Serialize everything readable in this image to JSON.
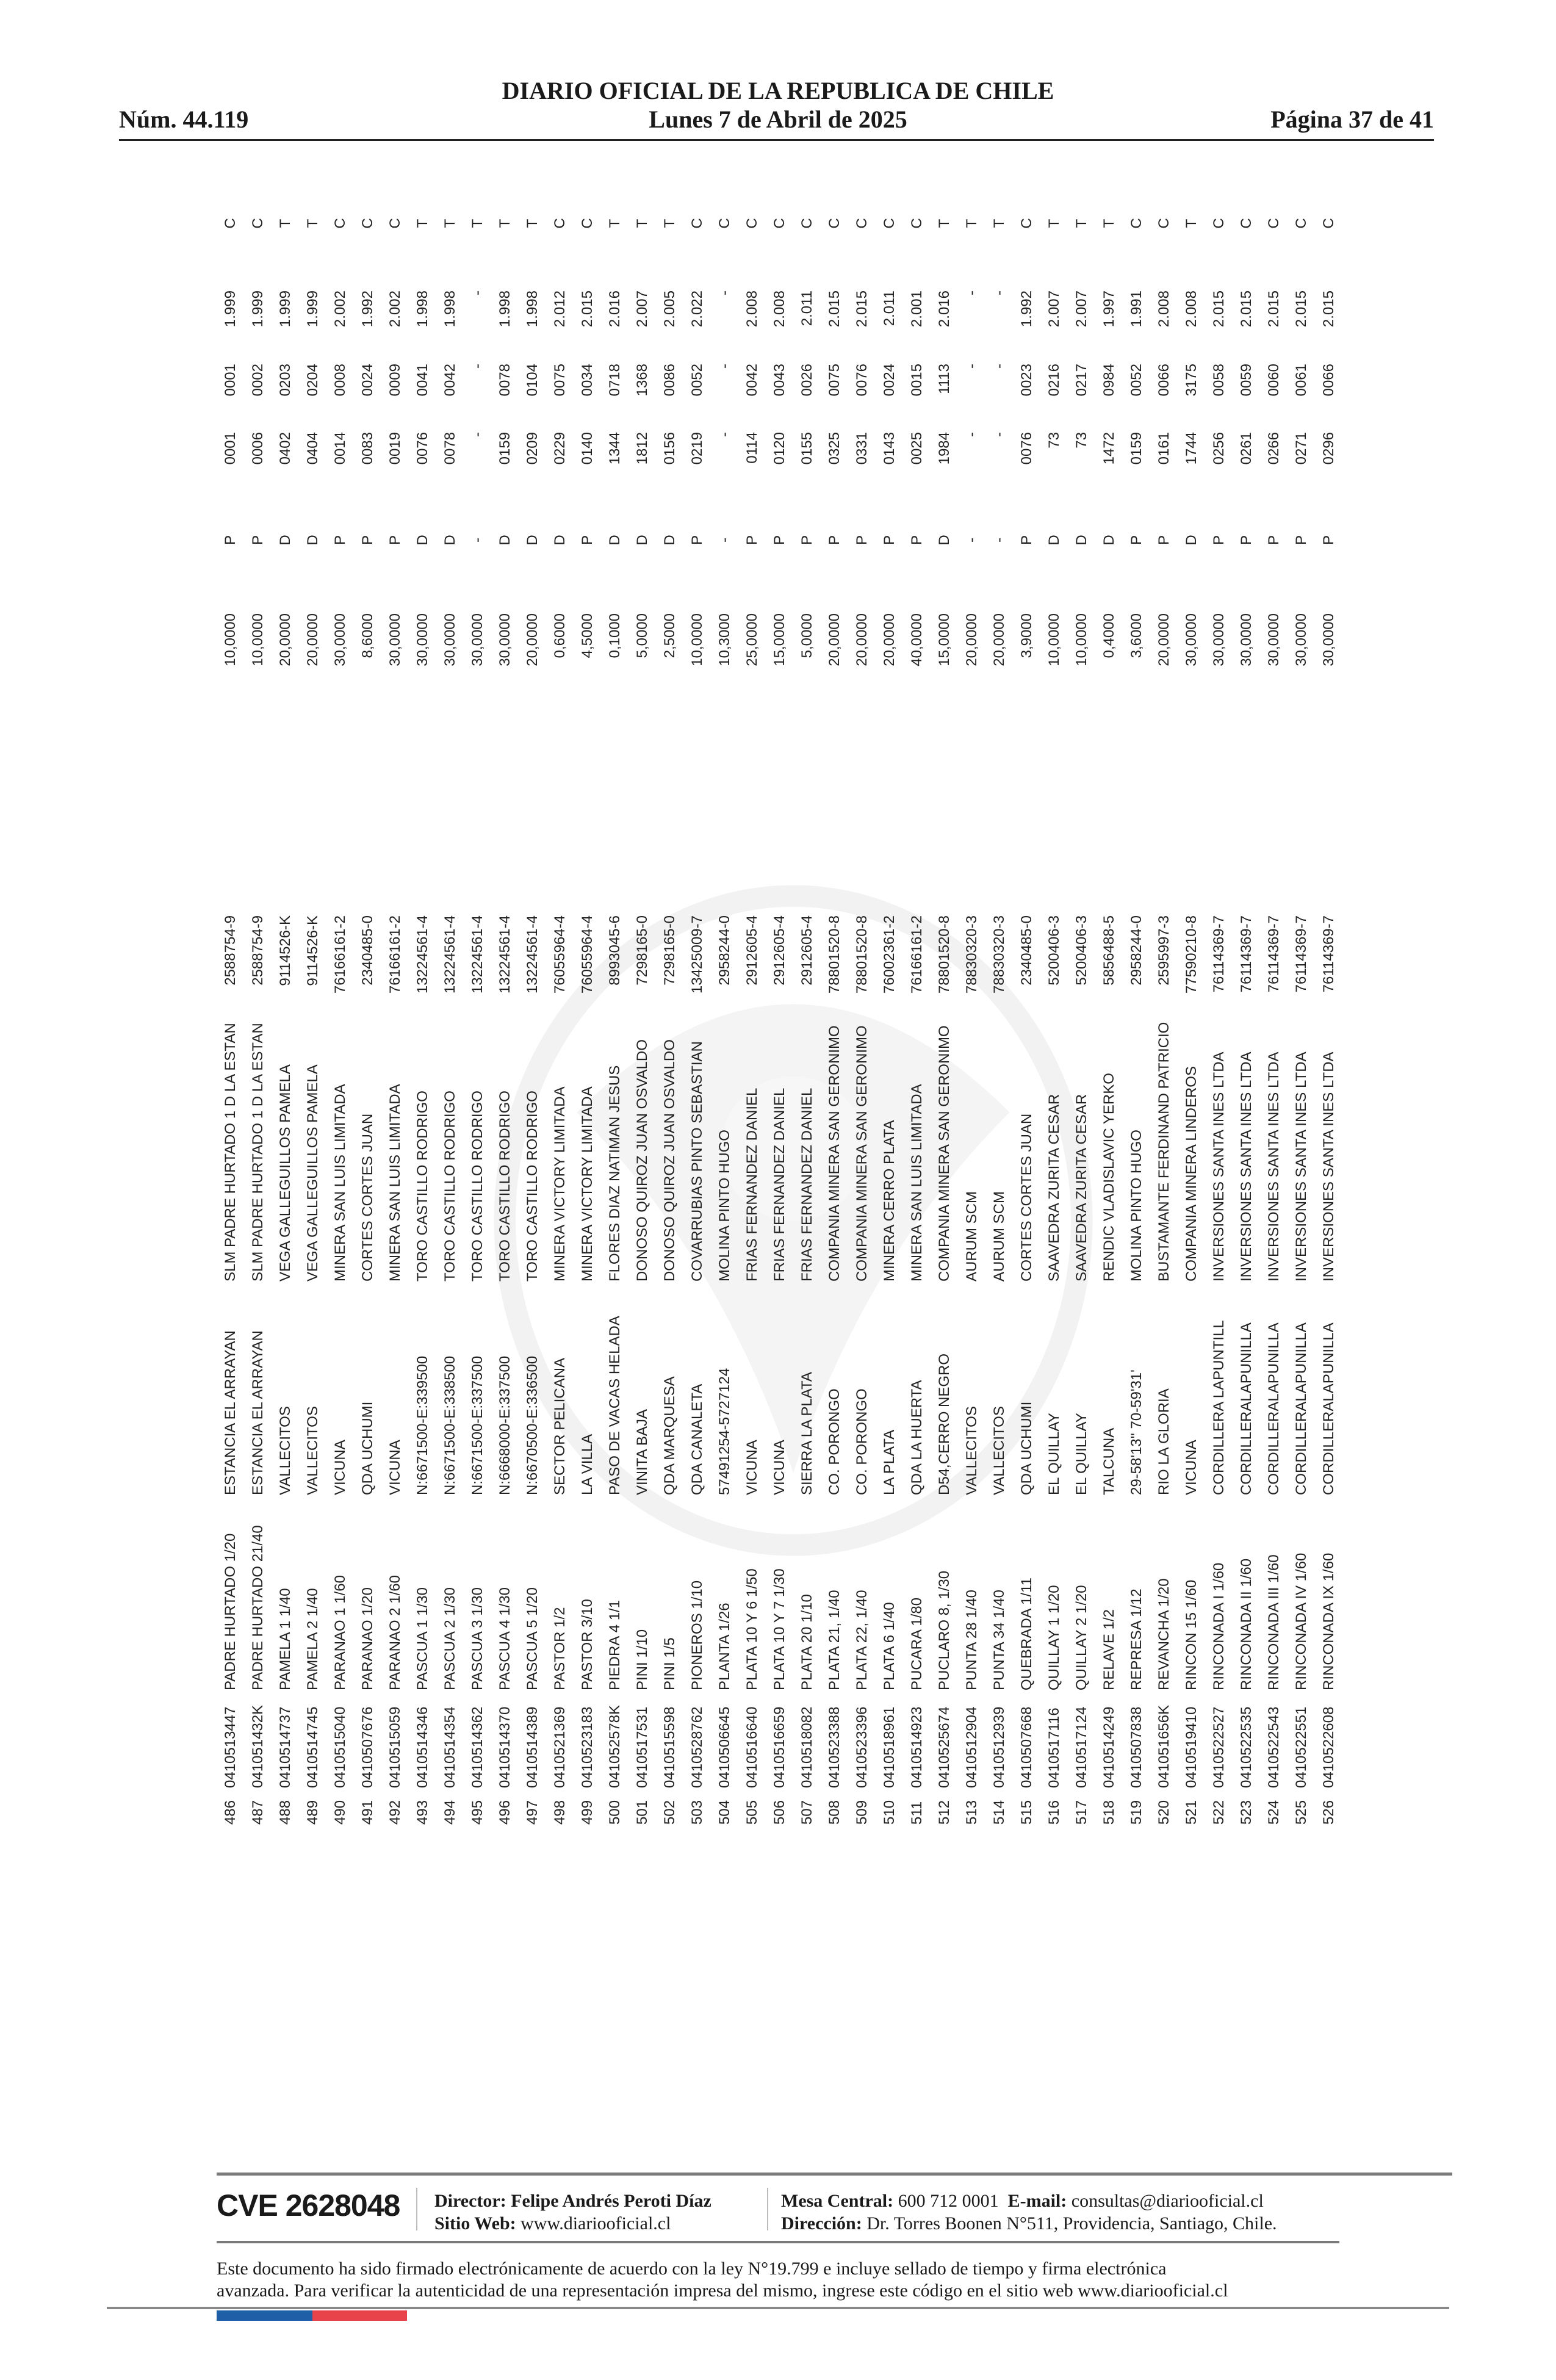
{
  "header": {
    "title": "DIARIO OFICIAL DE LA REPUBLICA DE CHILE",
    "issue": "Núm. 44.119",
    "date": "Lunes 7 de Abril de 2025",
    "page": "Página 37 de 41"
  },
  "rows": [
    [
      "486",
      "0410513447",
      "PADRE HURTADO 1/20",
      "ESTANCIA EL ARRAYAN",
      "SLM PADRE HURTADO 1 D LA ESTAN",
      "2588754-9",
      "10,0000",
      "P",
      "0001",
      "0001",
      "1.999",
      "C"
    ],
    [
      "487",
      "041051432K",
      "PADRE HURTADO 21/40",
      "ESTANCIA EL ARRAYAN",
      "SLM PADRE HURTADO 1 D LA ESTAN",
      "2588754-9",
      "10,0000",
      "P",
      "0006",
      "0002",
      "1.999",
      "C"
    ],
    [
      "488",
      "0410514737",
      "PAMELA 1 1/40",
      "VALLECITOS",
      "VEGA GALLEGUILLOS PAMELA",
      "9114526-K",
      "20,0000",
      "D",
      "0402",
      "0203",
      "1.999",
      "T"
    ],
    [
      "489",
      "0410514745",
      "PAMELA 2 1/40",
      "VALLECITOS",
      "VEGA GALLEGUILLOS PAMELA",
      "9114526-K",
      "20,0000",
      "D",
      "0404",
      "0204",
      "1.999",
      "T"
    ],
    [
      "490",
      "0410515040",
      "PARANAO 1 1/60",
      "VICUNA",
      "MINERA SAN LUIS LIMITADA",
      "76166161-2",
      "30,0000",
      "P",
      "0014",
      "0008",
      "2.002",
      "C"
    ],
    [
      "491",
      "0410507676",
      "PARANAO 1/20",
      "QDA UCHUMI",
      "CORTES CORTES JUAN",
      "2340485-0",
      "8,6000",
      "P",
      "0083",
      "0024",
      "1.992",
      "C"
    ],
    [
      "492",
      "0410515059",
      "PARANAO 2 1/60",
      "VICUNA",
      "MINERA SAN LUIS LIMITADA",
      "76166161-2",
      "30,0000",
      "P",
      "0019",
      "0009",
      "2.002",
      "C"
    ],
    [
      "493",
      "0410514346",
      "PASCUA 1 1/30",
      "N:6671500-E:339500",
      "TORO CASTILLO RODRIGO",
      "13224561-4",
      "30,0000",
      "D",
      "0076",
      "0041",
      "1.998",
      "T"
    ],
    [
      "494",
      "0410514354",
      "PASCUA 2 1/30",
      "N:6671500-E:338500",
      "TORO CASTILLO RODRIGO",
      "13224561-4",
      "30,0000",
      "D",
      "0078",
      "0042",
      "1.998",
      "T"
    ],
    [
      "495",
      "0410514362",
      "PASCUA 3 1/30",
      "N:6671500-E:337500",
      "TORO CASTILLO RODRIGO",
      "13224561-4",
      "30,0000",
      "-",
      "-",
      "-",
      "-",
      "T"
    ],
    [
      "496",
      "0410514370",
      "PASCUA 4 1/30",
      "N:6668000-E:337500",
      "TORO CASTILLO RODRIGO",
      "13224561-4",
      "30,0000",
      "D",
      "0159",
      "0078",
      "1.998",
      "T"
    ],
    [
      "497",
      "0410514389",
      "PASCUA 5 1/20",
      "N:6670500-E:336500",
      "TORO CASTILLO RODRIGO",
      "13224561-4",
      "20,0000",
      "D",
      "0209",
      "0104",
      "1.998",
      "T"
    ],
    [
      "498",
      "0410521369",
      "PASTOR 1/2",
      "SECTOR PELICANA",
      "MINERA VICTORY LIMITADA",
      "76055964-4",
      "0,6000",
      "D",
      "0229",
      "0075",
      "2.012",
      "C"
    ],
    [
      "499",
      "0410523183",
      "PASTOR 3/10",
      "LA VILLA",
      "MINERA VICTORY LIMITADA",
      "76055964-4",
      "4,5000",
      "P",
      "0140",
      "0034",
      "2.015",
      "C"
    ],
    [
      "500",
      "041052578K",
      "PIEDRA 4 1/1",
      "PASO DE VACAS HELADA",
      "FLORES DIAZ NATIMAN JESUS",
      "8993045-6",
      "0,1000",
      "D",
      "1344",
      "0718",
      "2.016",
      "T"
    ],
    [
      "501",
      "0410517531",
      "PINI 1/10",
      "VINITA BAJA",
      "DONOSO QUIROZ JUAN OSVALDO",
      "7298165-0",
      "5,0000",
      "D",
      "1812",
      "1368",
      "2.007",
      "T"
    ],
    [
      "502",
      "0410515598",
      "PINI 1/5",
      "QDA MARQUESA",
      "DONOSO QUIROZ JUAN OSVALDO",
      "7298165-0",
      "2,5000",
      "D",
      "0156",
      "0086",
      "2.005",
      "T"
    ],
    [
      "503",
      "0410528762",
      "PIONEROS 1/10",
      "QDA CANALETA",
      "COVARRUBIAS PINTO SEBASTIAN",
      "13425009-7",
      "10,0000",
      "P",
      "0219",
      "0052",
      "2.022",
      "C"
    ],
    [
      "504",
      "0410506645",
      "PLANTA 1/26",
      "57491254-5727124",
      "MOLINA PINTO HUGO",
      "2958244-0",
      "10,3000",
      "-",
      "-",
      "-",
      "-",
      "C"
    ],
    [
      "505",
      "0410516640",
      "PLATA 10 Y 6 1/50",
      "VICUNA",
      "FRIAS FERNANDEZ DANIEL",
      "2912605-4",
      "25,0000",
      "P",
      "0114",
      "0042",
      "2.008",
      "C"
    ],
    [
      "506",
      "0410516659",
      "PLATA 10 Y 7 1/30",
      "VICUNA",
      "FRIAS FERNANDEZ DANIEL",
      "2912605-4",
      "15,0000",
      "P",
      "0120",
      "0043",
      "2.008",
      "C"
    ],
    [
      "507",
      "0410518082",
      "PLATA 20 1/10",
      "SIERRA LA PLATA",
      "FRIAS FERNANDEZ DANIEL",
      "2912605-4",
      "5,0000",
      "P",
      "0155",
      "0026",
      "2.011",
      "C"
    ],
    [
      "508",
      "0410523388",
      "PLATA 21, 1/40",
      "CO. PORONGO",
      "COMPANIA MINERA SAN GERONIMO",
      "78801520-8",
      "20,0000",
      "P",
      "0325",
      "0075",
      "2.015",
      "C"
    ],
    [
      "509",
      "0410523396",
      "PLATA 22, 1/40",
      "CO. PORONGO",
      "COMPANIA MINERA SAN GERONIMO",
      "78801520-8",
      "20,0000",
      "P",
      "0331",
      "0076",
      "2.015",
      "C"
    ],
    [
      "510",
      "0410518961",
      "PLATA 6 1/40",
      "LA PLATA",
      "MINERA CERRO PLATA",
      "76002361-2",
      "20,0000",
      "P",
      "0143",
      "0024",
      "2.011",
      "C"
    ],
    [
      "511",
      "0410514923",
      "PUCARA 1/80",
      "QDA LA HUERTA",
      "MINERA SAN LUIS LIMITADA",
      "76166161-2",
      "40,0000",
      "P",
      "0025",
      "0015",
      "2.001",
      "C"
    ],
    [
      "512",
      "0410525674",
      "PUCLARO 8, 1/30",
      "D54,CERRO NEGRO",
      "COMPANIA MINERA SAN GERONIMO",
      "78801520-8",
      "15,0000",
      "D",
      "1984",
      "1113",
      "2.016",
      "T"
    ],
    [
      "513",
      "0410512904",
      "PUNTA 28 1/40",
      "VALLECITOS",
      "AURUM SCM",
      "78830320-3",
      "20,0000",
      "-",
      "-",
      "-",
      "-",
      "T"
    ],
    [
      "514",
      "0410512939",
      "PUNTA 34 1/40",
      "VALLECITOS",
      "AURUM SCM",
      "78830320-3",
      "20,0000",
      "-",
      "-",
      "-",
      "-",
      "T"
    ],
    [
      "515",
      "0410507668",
      "QUEBRADA 1/11",
      "QDA UCHUMI",
      "CORTES CORTES JUAN",
      "2340485-0",
      "3,9000",
      "P",
      "0076",
      "0023",
      "1.992",
      "C"
    ],
    [
      "516",
      "0410517116",
      "QUILLAY 1 1/20",
      "EL QUILLAY",
      "SAAVEDRA ZURITA CESAR",
      "5200406-3",
      "10,0000",
      "D",
      "73",
      "0216",
      "2.007",
      "T"
    ],
    [
      "517",
      "0410517124",
      "QUILLAY 2 1/20",
      "EL QUILLAY",
      "SAAVEDRA ZURITA CESAR",
      "5200406-3",
      "10,0000",
      "D",
      "73",
      "0217",
      "2.007",
      "T"
    ],
    [
      "518",
      "0410514249",
      "RELAVE 1/2",
      "TALCUNA",
      "RENDIC VLADISLAVIC YERKO",
      "5856488-5",
      "0,4000",
      "D",
      "1472",
      "0984",
      "1.997",
      "T"
    ],
    [
      "519",
      "0410507838",
      "REPRESA 1/12",
      "29-58'13'' 70-59'31'",
      "MOLINA PINTO HUGO",
      "2958244-0",
      "3,6000",
      "P",
      "0159",
      "0052",
      "1.991",
      "C"
    ],
    [
      "520",
      "041051656K",
      "REVANCHA 1/20",
      "RIO LA GLORIA",
      "BUSTAMANTE FERDINAND PATRICIO",
      "2595997-3",
      "20,0000",
      "P",
      "0161",
      "0066",
      "2.008",
      "C"
    ],
    [
      "521",
      "0410519410",
      "RINCON 15 1/60",
      "VICUNA",
      "COMPANIA MINERA LINDEROS",
      "77590210-8",
      "30,0000",
      "D",
      "1744",
      "3175",
      "2.008",
      "T"
    ],
    [
      "522",
      "0410522527",
      "RINCONADA I 1/60",
      "CORDILLERA LAPUNTILL",
      "INVERSIONES SANTA INES LTDA",
      "76114369-7",
      "30,0000",
      "P",
      "0256",
      "0058",
      "2.015",
      "C"
    ],
    [
      "523",
      "0410522535",
      "RINCONADA II 1/60",
      "CORDILLERALAPUNILLA",
      "INVERSIONES SANTA INES LTDA",
      "76114369-7",
      "30,0000",
      "P",
      "0261",
      "0059",
      "2.015",
      "C"
    ],
    [
      "524",
      "0410522543",
      "RINCONADA III 1/60",
      "CORDILLERALAPUNILLA",
      "INVERSIONES SANTA INES LTDA",
      "76114369-7",
      "30,0000",
      "P",
      "0266",
      "0060",
      "2.015",
      "C"
    ],
    [
      "525",
      "0410522551",
      "RINCONADA IV 1/60",
      "CORDILLERALAPUNILLA",
      "INVERSIONES SANTA INES LTDA",
      "76114369-7",
      "30,0000",
      "P",
      "0271",
      "0061",
      "2.015",
      "C"
    ],
    [
      "526",
      "0410522608",
      "RINCONADA IX 1/60",
      "CORDILLERALAPUNILLA",
      "INVERSIONES SANTA INES LTDA",
      "76114369-7",
      "30,0000",
      "P",
      "0296",
      "0066",
      "2.015",
      "C"
    ]
  ],
  "footer": {
    "cve": "CVE 2628048",
    "director_label": "Director:",
    "director": "Felipe Andrés Peroti Díaz",
    "web_label": "Sitio Web:",
    "web": "www.diariooficial.cl",
    "phone_label": "Mesa Central:",
    "phone": "600 712 0001",
    "email_label": "E-mail:",
    "email": "consultas@diariooficial.cl",
    "address_label": "Dirección:",
    "address": "Dr. Torres Boonen N°511, Providencia, Santiago, Chile.",
    "disclaimer_1": "Este documento ha sido firmado electrónicamente de acuerdo con la ley N°19.799 e incluye sellado de tiempo y firma electrónica",
    "disclaimer_2": "avanzada. Para verificar la autenticidad de una representación impresa del mismo, ingrese este código en el sitio web www.diariooficial.cl"
  },
  "colors": {
    "flag_blue": "#1f5fa8",
    "flag_red": "#e8424b"
  },
  "icons": {
    "watermark": "coat-of-arms-watermark"
  }
}
